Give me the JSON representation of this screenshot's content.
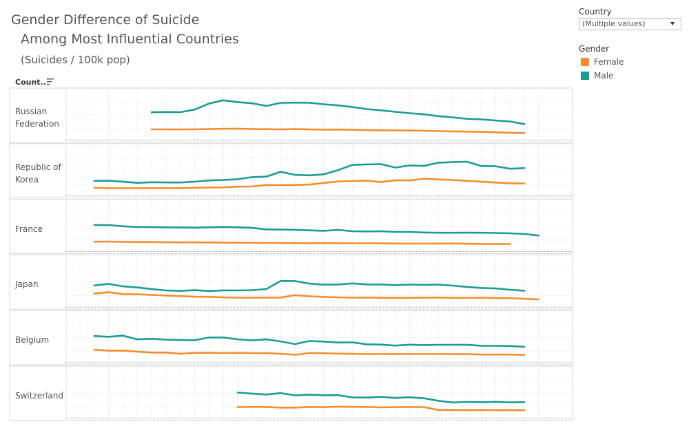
{
  "header": {
    "title": "Gender Difference of Suicide",
    "title2": "Among Most Influential Countries",
    "subtitle": "(Suicides / 100k pop)",
    "count_label": "Count.."
  },
  "filter": {
    "label": "Country",
    "value": "(Multiple values)"
  },
  "legend": {
    "title": "Gender",
    "items": [
      {
        "label": "Female",
        "color": "#f28e2b"
      },
      {
        "label": "Male",
        "color": "#1a9c92"
      }
    ]
  },
  "chart_data": {
    "type": "line",
    "title": "Gender Difference of Suicide Among Most Influential Countries",
    "subtitle": "(Suicides / 100k pop)",
    "x_range": [
      1985,
      2016
    ],
    "grid": true,
    "legend_position": "top-right",
    "panels": [
      {
        "country": "Russian Federation",
        "label_lines": [
          "Russian",
          "Federation"
        ],
        "y_range": [
          0,
          80
        ],
        "series": [
          {
            "name": "Female",
            "start_year": 1989,
            "values": [
              13.8,
              13.8,
              13.6,
              13.8,
              14.4,
              14.8,
              15.2,
              14.4,
              14.2,
              13.8,
              14.3,
              13.6,
              13.4,
              13.5,
              13.0,
              12.3,
              12.1,
              11.9,
              11.7,
              11.2,
              10.6,
              10.1,
              9.7,
              9.2,
              8.4,
              7.4,
              7.0
            ]
          },
          {
            "name": "Male",
            "start_year": 1989,
            "values": [
              45.5,
              45.8,
              45.6,
              50.5,
              61.5,
              67.7,
              64.2,
              62.1,
              57.2,
              62.8,
              63.2,
              63.1,
              60.3,
              58.2,
              55.1,
              51.4,
              49.0,
              46.3,
              43.7,
              41.6,
              38.2,
              36.0,
              33.3,
              32.2,
              30.2,
              28.4,
              23.6
            ]
          }
        ]
      },
      {
        "country": "Republic of Korea",
        "label_lines": [
          "Republic of",
          "Korea"
        ],
        "y_range": [
          0,
          80
        ],
        "series": [
          {
            "name": "Female",
            "start_year": 1985,
            "values": [
              8.6,
              7.8,
              7.8,
              7.8,
              7.9,
              7.9,
              7.9,
              8.6,
              9.1,
              9.3,
              10.7,
              11.0,
              13.8,
              13.4,
              13.8,
              14.5,
              17.4,
              20.3,
              21.2,
              21.7,
              19.3,
              22.5,
              22.2,
              25.4,
              24.1,
              23.0,
              21.4,
              19.8,
              18.4,
              16.9,
              16.5
            ]
          },
          {
            "name": "Male",
            "start_year": 1985,
            "values": [
              21.4,
              21.7,
              19.8,
              17.7,
              18.8,
              18.5,
              18.3,
              19.9,
              22.2,
              23.0,
              24.5,
              28.3,
              29.3,
              38.2,
              32.5,
              31.6,
              33.5,
              41.3,
              50.9,
              51.9,
              52.3,
              46.0,
              50.0,
              49.2,
              55.0,
              56.1,
              56.8,
              48.9,
              48.4,
              43.8,
              45.0
            ]
          }
        ]
      },
      {
        "country": "France",
        "label_lines": [
          "France"
        ],
        "y_range": [
          0,
          80
        ],
        "series": [
          {
            "name": "Female",
            "start_year": 1985,
            "values": [
              11.7,
              11.9,
              11.5,
              11.0,
              10.9,
              10.7,
              10.6,
              10.5,
              10.3,
              9.9,
              9.8,
              9.7,
              9.4,
              9.3,
              9.0,
              8.9,
              9.0,
              8.9,
              8.7,
              8.8,
              8.6,
              8.4,
              8.2,
              8.2,
              8.3,
              8.4,
              8.0,
              7.7,
              7.6,
              7.5
            ]
          },
          {
            "name": "Male",
            "start_year": 1985,
            "values": [
              42.7,
              42.6,
              40.2,
              39.0,
              38.9,
              38.4,
              37.9,
              37.7,
              38.3,
              39.0,
              38.4,
              37.3,
              34.5,
              34.2,
              33.7,
              32.7,
              31.8,
              33.6,
              31.1,
              30.7,
              31.1,
              29.9,
              29.8,
              28.8,
              28.3,
              28.3,
              28.4,
              28.3,
              27.9,
              27.3,
              26.0,
              23.0
            ]
          }
        ]
      },
      {
        "country": "Japan",
        "label_lines": [
          "Japan"
        ],
        "y_range": [
          0,
          80
        ],
        "series": [
          {
            "name": "Female",
            "start_year": 1985,
            "values": [
              18.6,
              21.2,
              17.6,
              17.3,
              16.2,
              14.9,
              14.0,
              12.7,
              12.6,
              11.6,
              11.1,
              11.0,
              11.1,
              11.3,
              15.7,
              13.6,
              12.5,
              11.7,
              11.1,
              11.3,
              10.8,
              10.6,
              10.7,
              11.0,
              11.2,
              10.7,
              10.4,
              11.0,
              10.2,
              10.1,
              9.0,
              7.8
            ]
          },
          {
            "name": "Male",
            "start_year": 1985,
            "values": [
              33.6,
              36.5,
              32.0,
              29.9,
              26.9,
              24.5,
              23.6,
              25.0,
              23.3,
              24.6,
              24.4,
              24.8,
              27.0,
              42.1,
              41.8,
              37.1,
              35.2,
              35.4,
              37.4,
              35.5,
              35.6,
              34.3,
              35.3,
              34.7,
              35.2,
              33.4,
              31.0,
              29.0,
              28.2,
              25.7,
              24.0
            ]
          }
        ]
      },
      {
        "country": "Belgium",
        "label_lines": [
          "Belgium"
        ],
        "y_range": [
          0,
          80
        ],
        "series": [
          {
            "name": "Female",
            "start_year": 1985,
            "values": [
              17.6,
              15.8,
              16.0,
              14.1,
              12.4,
              12.5,
              10.2,
              11.8,
              11.8,
              11.5,
              11.8,
              11.2,
              11.2,
              10.0,
              8.3,
              11.5,
              11.1,
              10.4,
              10.0,
              9.6,
              9.6,
              9.7,
              9.5,
              9.5,
              9.5,
              9.4,
              9.6,
              8.7,
              8.6,
              8.6,
              8.2
            ]
          },
          {
            "name": "Male",
            "start_year": 1985,
            "values": [
              42.9,
              41.6,
              43.7,
              36.8,
              37.8,
              36.3,
              35.8,
              35.1,
              40.2,
              40.3,
              36.9,
              35.0,
              36.8,
              33.0,
              28.0,
              33.8,
              32.8,
              30.9,
              31.2,
              27.6,
              27.1,
              25.2,
              27.0,
              26.3,
              26.7,
              26.8,
              26.9,
              25.0,
              24.9,
              24.5,
              23.0
            ]
          }
        ]
      },
      {
        "country": "Switzerland",
        "label_lines": [
          "Switzerland"
        ],
        "y_range": [
          0,
          80
        ],
        "series": [
          {
            "name": "Female",
            "start_year": 1995,
            "values": [
              14.3,
              14.8,
              14.6,
              13.4,
              13.4,
              14.6,
              14.1,
              15.2,
              14.8,
              14.7,
              13.8,
              14.3,
              14.5,
              14.4,
              9.0,
              9.0,
              8.8,
              9.1,
              8.6,
              8.8,
              8.8
            ]
          },
          {
            "name": "Male",
            "start_year": 1995,
            "values": [
              41.3,
              39.4,
              37.6,
              40.3,
              36.0,
              37.2,
              36.3,
              36.4,
              32.4,
              32.0,
              33.3,
              31.3,
              32.6,
              30.7,
              26.0,
              22.9,
              23.9,
              23.4,
              24.1,
              23.0,
              23.6
            ]
          }
        ]
      }
    ]
  }
}
